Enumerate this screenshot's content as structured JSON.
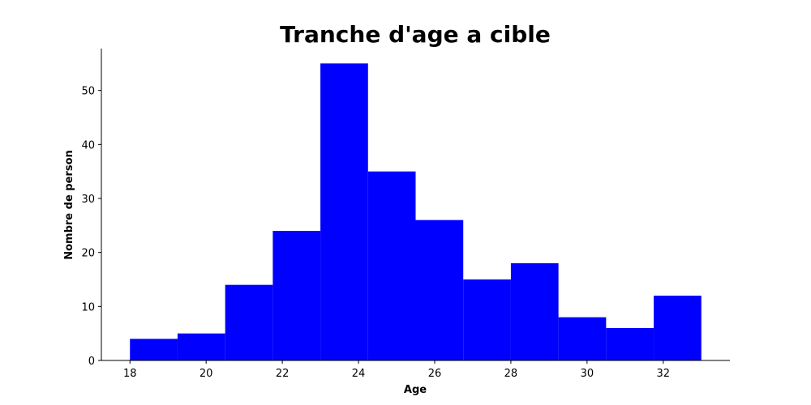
{
  "chart_data": {
    "type": "bar",
    "title": "Tranche d'age a cible",
    "xlabel": "Age",
    "ylabel": "Nombre de person",
    "bin_edges": [
      18,
      19.25,
      20.5,
      21.75,
      23,
      24.25,
      25.5,
      26.75,
      28,
      29.25,
      30.5,
      31.75,
      33
    ],
    "values": [
      4,
      5,
      14,
      24,
      55,
      35,
      26,
      15,
      18,
      8,
      6,
      12
    ],
    "xlim": [
      17.25,
      33.75
    ],
    "ylim": [
      0,
      57.75
    ],
    "x_ticks": [
      18,
      20,
      22,
      24,
      26,
      28,
      30,
      32
    ],
    "y_ticks": [
      0,
      10,
      20,
      30,
      40,
      50
    ],
    "bar_color": "#0000ff",
    "grid": false
  }
}
